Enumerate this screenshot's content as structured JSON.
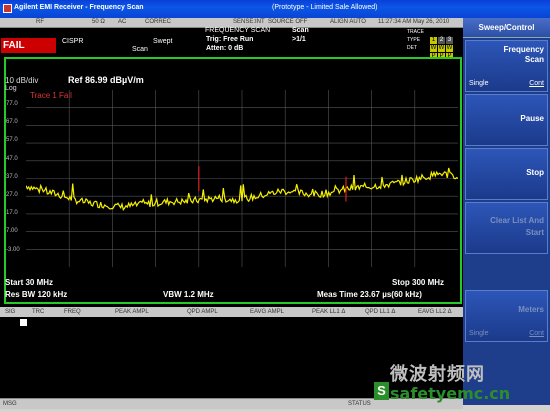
{
  "window": {
    "title": "Agilent EMI Receiver - Frequency Scan",
    "subtitle": "(Prototype - Limited Sale Allowed)"
  },
  "statusbar": {
    "items": [
      "RF",
      "50 Ω",
      "AC",
      "CORREC",
      "SENSE:INT",
      "SOURCE OFF",
      "ALIGN AUTO",
      "11:27:34 AM May 26, 2010"
    ]
  },
  "header": {
    "fail": "FAIL",
    "cispr": "CISPR",
    "swept": "Swept",
    "scan_label": "Scan",
    "mode": "FREQUENCY SCAN",
    "trig": "Trig: Free Run",
    "atten": "Atten: 0 dB",
    "scan": "Scan",
    "scan_count": ">1/1",
    "trace_label": "TRACE",
    "type_label": "TYPE",
    "det_label": "DET",
    "trace_chips": [
      "1",
      "2",
      "3"
    ],
    "type_chips": [
      "W",
      "W",
      "W"
    ],
    "det_chips": [
      "P",
      "P",
      "P"
    ]
  },
  "display": {
    "scale": "10 dB/div",
    "log": "Log",
    "ref": "Ref 86.99 dBµV/m",
    "trace_status": "Trace 1 Fail",
    "y_ticks": [
      "77.0",
      "67.0",
      "57.0",
      "47.0",
      "37.0",
      "27.0",
      "17.0",
      "7.00",
      "-3.00"
    ],
    "start": "Start 30 MHz",
    "stop": "Stop 300 MHz",
    "res_bw": "Res BW 120 kHz",
    "vbw": "VBW 1.2 MHz",
    "meas_time": "Meas Time 23.67 µs(60 kHz)"
  },
  "chart_data": {
    "type": "line",
    "xlabel": "",
    "ylabel": "",
    "xlim": [
      30,
      300
    ],
    "ylim": [
      -13,
      87
    ],
    "series": [
      {
        "x": [
          30,
          40,
          50,
          60,
          70,
          80,
          90,
          100,
          110,
          120,
          130,
          140,
          150,
          160,
          170,
          180,
          190,
          200,
          210,
          220,
          230,
          240,
          250,
          260,
          270,
          280,
          290,
          300
        ],
        "values": [
          33,
          30,
          28,
          25,
          23,
          22,
          21,
          22,
          23,
          24,
          24,
          25,
          26,
          25,
          26,
          28,
          30,
          29,
          28,
          29,
          31,
          32,
          33,
          34,
          36,
          38,
          40,
          37
        ]
      }
    ],
    "limit_spikes": [
      {
        "x": 138,
        "y": 44
      },
      {
        "x": 230,
        "y": 38
      }
    ]
  },
  "measure_table": {
    "headers": [
      "SIG",
      "TRC",
      "FREQ",
      "PEAK AMPL",
      "QPD AMPL",
      "EAVG AMPL",
      "PEAK LL1 Δ",
      "QPD LL1 Δ",
      "EAVG LL2 Δ"
    ]
  },
  "bottom": {
    "msg": "MSG",
    "status": "STATUS"
  },
  "softkeys": {
    "title": "Sweep/Control",
    "keys": [
      {
        "label": "Frequency\nScan",
        "sub_left": "Single",
        "sub_right": "Cont"
      },
      {
        "label": "Pause"
      },
      {
        "label": "Stop"
      },
      {
        "label": "Clear List And\nStart"
      },
      {
        "label": "Meters",
        "sub_left": "Single",
        "sub_right": "Cont"
      }
    ]
  },
  "watermark": {
    "cn": "微波射频网",
    "en": "safetyemc.cn",
    "logo": "S"
  }
}
